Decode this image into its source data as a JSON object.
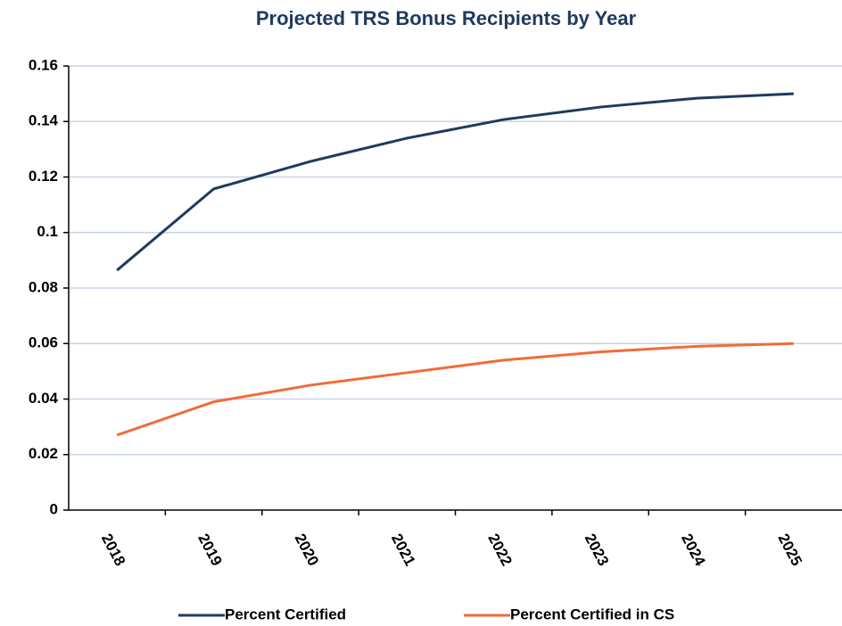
{
  "chart_data": {
    "type": "line",
    "title": "Projected TRS Bonus Recipients by Year",
    "categories": [
      "2018",
      "2019",
      "2020",
      "2021",
      "2022",
      "2023",
      "2024",
      "2025"
    ],
    "series": [
      {
        "name": "Percent Certified",
        "color": "#1f3a5f",
        "values": [
          0.0864,
          0.1157,
          0.1256,
          0.134,
          0.1407,
          0.1452,
          0.1484,
          0.15
        ]
      },
      {
        "name": "Percent Certified in CS",
        "color": "#f26b38",
        "values": [
          0.027,
          0.039,
          0.045,
          0.0495,
          0.054,
          0.057,
          0.059,
          0.06
        ]
      }
    ],
    "ylim": [
      0,
      0.16
    ],
    "yticks": [
      0,
      0.02,
      0.04,
      0.06,
      0.08,
      0.1,
      0.12,
      0.14,
      0.16
    ],
    "grid": true,
    "legend": "bottom"
  }
}
